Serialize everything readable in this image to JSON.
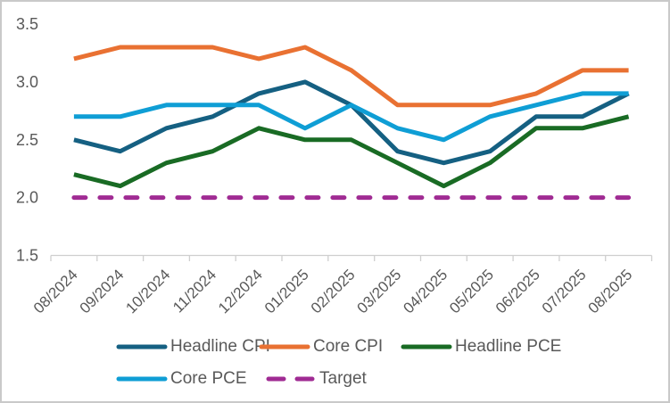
{
  "chart_data": {
    "type": "line",
    "categories": [
      "08/2024",
      "09/2024",
      "10/2024",
      "11/2024",
      "12/2024",
      "01/2025",
      "02/2025",
      "03/2025",
      "04/2025",
      "05/2025",
      "06/2025",
      "07/2025",
      "08/2025"
    ],
    "series": [
      {
        "name": "Headline CPI",
        "color": "#156082",
        "dashed": false,
        "values": [
          2.5,
          2.4,
          2.6,
          2.7,
          2.9,
          3.0,
          2.8,
          2.4,
          2.3,
          2.4,
          2.7,
          2.7,
          2.9
        ]
      },
      {
        "name": "Core CPI",
        "color": "#E97132",
        "dashed": false,
        "values": [
          3.2,
          3.3,
          3.3,
          3.3,
          3.2,
          3.3,
          3.1,
          2.8,
          2.8,
          2.8,
          2.9,
          3.1,
          3.1
        ]
      },
      {
        "name": "Headline PCE",
        "color": "#196B24",
        "dashed": false,
        "values": [
          2.2,
          2.1,
          2.3,
          2.4,
          2.6,
          2.5,
          2.5,
          2.3,
          2.1,
          2.3,
          2.6,
          2.6,
          2.7
        ]
      },
      {
        "name": "Core PCE",
        "color": "#0F9ED5",
        "dashed": false,
        "values": [
          2.7,
          2.7,
          2.8,
          2.8,
          2.8,
          2.6,
          2.8,
          2.6,
          2.5,
          2.7,
          2.8,
          2.9,
          2.9
        ]
      },
      {
        "name": "Target",
        "color": "#A02B93",
        "dashed": true,
        "values": [
          2.0,
          2.0,
          2.0,
          2.0,
          2.0,
          2.0,
          2.0,
          2.0,
          2.0,
          2.0,
          2.0,
          2.0,
          2.0
        ]
      }
    ],
    "ylim": [
      1.5,
      3.5
    ],
    "ytick_labels": [
      "3.5",
      "3.0",
      "2.5",
      "2.0",
      "1.5"
    ],
    "grid": false,
    "legend_position": "bottom",
    "colors": {
      "axis_text": "#595959",
      "axis_line": "#CFCFCF",
      "frame_border": "#C9C9C9",
      "background": "#FFFFFF"
    }
  }
}
